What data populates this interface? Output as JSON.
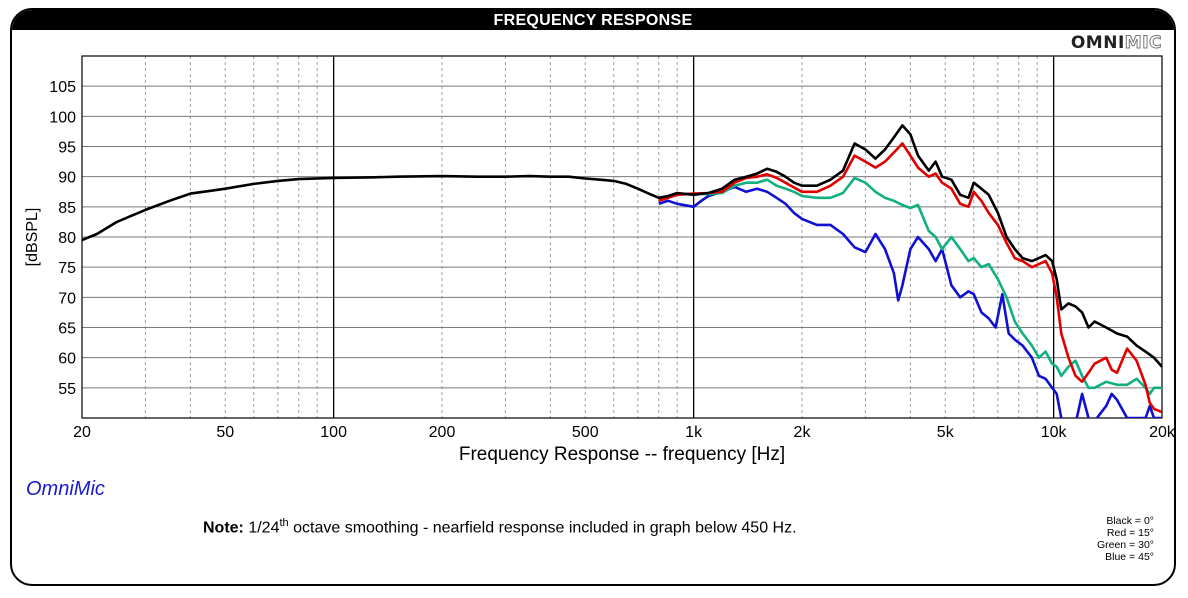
{
  "header": {
    "title": "FREQUENCY RESPONSE",
    "brand_bold": "OMNI",
    "brand_outline": "MIC"
  },
  "footer": {
    "app_label": "OmniMic",
    "note_bold": "Note:",
    "note_pre": " 1/24",
    "note_sup": "th",
    "note_post": " octave smoothing - nearfield response included in graph below 450 Hz.",
    "legend": [
      "Black = 0°",
      "Red = 15°",
      "Green = 30°",
      "Blue = 45°"
    ]
  },
  "colors": {
    "black": "#000000",
    "red": "#e00000",
    "green": "#10b080",
    "blue": "#1010d0",
    "grid": "#7a7a7a",
    "minor_grid": "#a0a0a0"
  },
  "chart_data": {
    "type": "line",
    "title": "FREQUENCY RESPONSE",
    "xlabel": "Frequency Response -- frequency [Hz]",
    "ylabel": "[dBSPL]",
    "xscale": "log",
    "xlim": [
      20,
      20000
    ],
    "ylim": [
      50,
      110
    ],
    "x_ticks": [
      20,
      50,
      100,
      200,
      500,
      1000,
      2000,
      5000,
      10000,
      20000
    ],
    "x_tick_labels": [
      "20",
      "50",
      "100",
      "200",
      "500",
      "1k",
      "2k",
      "5k",
      "10k",
      "20k"
    ],
    "y_ticks": [
      55,
      60,
      65,
      70,
      75,
      80,
      85,
      90,
      95,
      100,
      105
    ],
    "grid": true,
    "series": [
      {
        "name": "Black = 0°",
        "color": "#000000",
        "points": [
          [
            20,
            79.5
          ],
          [
            22,
            80.5
          ],
          [
            25,
            82.5
          ],
          [
            30,
            84.5
          ],
          [
            35,
            86
          ],
          [
            40,
            87.2
          ],
          [
            45,
            87.6
          ],
          [
            50,
            88
          ],
          [
            60,
            88.8
          ],
          [
            70,
            89.3
          ],
          [
            80,
            89.6
          ],
          [
            100,
            89.8
          ],
          [
            130,
            89.9
          ],
          [
            150,
            90
          ],
          [
            200,
            90.1
          ],
          [
            250,
            90
          ],
          [
            300,
            90
          ],
          [
            350,
            90.1
          ],
          [
            400,
            90
          ],
          [
            450,
            90
          ],
          [
            500,
            89.7
          ],
          [
            550,
            89.5
          ],
          [
            600,
            89.3
          ],
          [
            650,
            88.8
          ],
          [
            700,
            88
          ],
          [
            750,
            87.2
          ],
          [
            800,
            86.5
          ],
          [
            850,
            86.8
          ],
          [
            900,
            87.3
          ],
          [
            1000,
            87
          ],
          [
            1100,
            87.3
          ],
          [
            1200,
            88
          ],
          [
            1300,
            89.5
          ],
          [
            1400,
            90
          ],
          [
            1500,
            90.5
          ],
          [
            1600,
            91.3
          ],
          [
            1700,
            90.8
          ],
          [
            1800,
            90
          ],
          [
            1900,
            89
          ],
          [
            2000,
            88.5
          ],
          [
            2200,
            88.5
          ],
          [
            2400,
            89.5
          ],
          [
            2600,
            91
          ],
          [
            2800,
            95.5
          ],
          [
            3000,
            94.5
          ],
          [
            3200,
            93
          ],
          [
            3400,
            94.5
          ],
          [
            3600,
            96.5
          ],
          [
            3800,
            98.5
          ],
          [
            4000,
            97
          ],
          [
            4200,
            93.5
          ],
          [
            4500,
            91
          ],
          [
            4700,
            92.5
          ],
          [
            4900,
            90
          ],
          [
            5200,
            89.5
          ],
          [
            5500,
            87
          ],
          [
            5800,
            86.5
          ],
          [
            6000,
            89
          ],
          [
            6300,
            88
          ],
          [
            6600,
            87
          ],
          [
            7000,
            84
          ],
          [
            7400,
            80
          ],
          [
            7800,
            78
          ],
          [
            8200,
            76.5
          ],
          [
            8700,
            76
          ],
          [
            9100,
            76.5
          ],
          [
            9500,
            77
          ],
          [
            9900,
            76
          ],
          [
            10200,
            73
          ],
          [
            10500,
            68
          ],
          [
            11000,
            69
          ],
          [
            11500,
            68.5
          ],
          [
            12000,
            67.5
          ],
          [
            12500,
            65
          ],
          [
            13000,
            66
          ],
          [
            14000,
            65
          ],
          [
            15000,
            64
          ],
          [
            16000,
            63.5
          ],
          [
            17000,
            62
          ],
          [
            18000,
            61
          ],
          [
            19000,
            60
          ],
          [
            20000,
            58.5
          ]
        ]
      },
      {
        "name": "Red = 15°",
        "color": "#e00000",
        "points": [
          [
            800,
            86
          ],
          [
            850,
            86.5
          ],
          [
            900,
            87
          ],
          [
            1000,
            87.2
          ],
          [
            1100,
            87.3
          ],
          [
            1200,
            87.5
          ],
          [
            1300,
            89
          ],
          [
            1400,
            89.8
          ],
          [
            1500,
            90
          ],
          [
            1600,
            90.4
          ],
          [
            1700,
            89.8
          ],
          [
            1800,
            89
          ],
          [
            1900,
            88.2
          ],
          [
            2000,
            87.5
          ],
          [
            2200,
            87.5
          ],
          [
            2400,
            88.5
          ],
          [
            2600,
            90
          ],
          [
            2800,
            93.5
          ],
          [
            3000,
            92.5
          ],
          [
            3200,
            91.5
          ],
          [
            3400,
            92.5
          ],
          [
            3600,
            94
          ],
          [
            3800,
            95.5
          ],
          [
            4000,
            93.5
          ],
          [
            4200,
            91.5
          ],
          [
            4500,
            90
          ],
          [
            4700,
            90.5
          ],
          [
            4900,
            89
          ],
          [
            5200,
            88
          ],
          [
            5500,
            85.5
          ],
          [
            5800,
            85
          ],
          [
            6000,
            87.5
          ],
          [
            6300,
            86
          ],
          [
            6600,
            84
          ],
          [
            7000,
            82
          ],
          [
            7400,
            79
          ],
          [
            7800,
            76.5
          ],
          [
            8200,
            76
          ],
          [
            8700,
            75
          ],
          [
            9100,
            75.5
          ],
          [
            9500,
            76
          ],
          [
            9900,
            74
          ],
          [
            10200,
            70
          ],
          [
            10500,
            64
          ],
          [
            11000,
            60
          ],
          [
            11500,
            57
          ],
          [
            12000,
            56
          ],
          [
            12500,
            57.5
          ],
          [
            13000,
            59
          ],
          [
            14000,
            60
          ],
          [
            14500,
            58
          ],
          [
            15000,
            57.5
          ],
          [
            16000,
            61.5
          ],
          [
            17000,
            59.5
          ],
          [
            18000,
            55.5
          ],
          [
            18500,
            52.5
          ],
          [
            19000,
            51.5
          ],
          [
            20000,
            51
          ]
        ]
      },
      {
        "name": "Green = 30°",
        "color": "#10b080",
        "points": [
          [
            800,
            86.2
          ],
          [
            850,
            86.8
          ],
          [
            900,
            87
          ],
          [
            1000,
            87.2
          ],
          [
            1100,
            87.1
          ],
          [
            1200,
            87.3
          ],
          [
            1300,
            88.5
          ],
          [
            1400,
            89
          ],
          [
            1500,
            89
          ],
          [
            1600,
            89.5
          ],
          [
            1700,
            88.5
          ],
          [
            1800,
            88
          ],
          [
            1900,
            87.5
          ],
          [
            2000,
            86.8
          ],
          [
            2200,
            86.5
          ],
          [
            2400,
            86.5
          ],
          [
            2600,
            87.3
          ],
          [
            2800,
            89.8
          ],
          [
            3000,
            89
          ],
          [
            3200,
            87.5
          ],
          [
            3400,
            86.5
          ],
          [
            3600,
            86
          ],
          [
            3800,
            85.3
          ],
          [
            4000,
            84.8
          ],
          [
            4200,
            85.3
          ],
          [
            4500,
            81
          ],
          [
            4700,
            80
          ],
          [
            4900,
            78
          ],
          [
            5200,
            80
          ],
          [
            5500,
            78
          ],
          [
            5800,
            76
          ],
          [
            6000,
            76.5
          ],
          [
            6300,
            75
          ],
          [
            6600,
            75.5
          ],
          [
            7000,
            73
          ],
          [
            7400,
            70
          ],
          [
            7800,
            66
          ],
          [
            8200,
            64
          ],
          [
            8700,
            62
          ],
          [
            9100,
            60
          ],
          [
            9500,
            61
          ],
          [
            9900,
            59
          ],
          [
            10200,
            58.5
          ],
          [
            10500,
            57
          ],
          [
            11000,
            58.5
          ],
          [
            11500,
            59.5
          ],
          [
            12000,
            57
          ],
          [
            12500,
            55
          ],
          [
            13000,
            55
          ],
          [
            14000,
            56
          ],
          [
            15000,
            55.5
          ],
          [
            16000,
            55.5
          ],
          [
            17000,
            56.5
          ],
          [
            18000,
            55
          ],
          [
            18500,
            54
          ],
          [
            19000,
            55
          ],
          [
            20000,
            55
          ]
        ]
      },
      {
        "name": "Blue = 45°",
        "color": "#1010d0",
        "points": [
          [
            800,
            85.5
          ],
          [
            850,
            86
          ],
          [
            900,
            85.5
          ],
          [
            1000,
            85
          ],
          [
            1050,
            86
          ],
          [
            1100,
            86.8
          ],
          [
            1200,
            87.5
          ],
          [
            1300,
            88.3
          ],
          [
            1400,
            87.5
          ],
          [
            1500,
            88
          ],
          [
            1600,
            87.5
          ],
          [
            1700,
            86.5
          ],
          [
            1800,
            85.5
          ],
          [
            1900,
            84
          ],
          [
            2000,
            83
          ],
          [
            2200,
            82
          ],
          [
            2400,
            82
          ],
          [
            2600,
            80.5
          ],
          [
            2800,
            78.3
          ],
          [
            3000,
            77.5
          ],
          [
            3200,
            80.5
          ],
          [
            3400,
            78
          ],
          [
            3600,
            74
          ],
          [
            3700,
            69.5
          ],
          [
            3800,
            72
          ],
          [
            4000,
            78
          ],
          [
            4200,
            80
          ],
          [
            4500,
            78
          ],
          [
            4700,
            76
          ],
          [
            4900,
            78
          ],
          [
            5200,
            72
          ],
          [
            5500,
            70
          ],
          [
            5800,
            71
          ],
          [
            6000,
            70.5
          ],
          [
            6300,
            67.5
          ],
          [
            6600,
            66.5
          ],
          [
            6900,
            65
          ],
          [
            7200,
            70.5
          ],
          [
            7500,
            64
          ],
          [
            7800,
            63
          ],
          [
            8200,
            62
          ],
          [
            8700,
            60
          ],
          [
            9100,
            57
          ],
          [
            9500,
            56.5
          ],
          [
            9900,
            55
          ],
          [
            10200,
            54
          ],
          [
            10500,
            50
          ],
          [
            11000,
            49
          ],
          [
            11500,
            49
          ],
          [
            12000,
            54
          ],
          [
            12500,
            50
          ],
          [
            13000,
            49.5
          ],
          [
            14000,
            52
          ],
          [
            14500,
            54
          ],
          [
            15000,
            53
          ],
          [
            16000,
            50
          ],
          [
            17000,
            50
          ],
          [
            18000,
            50
          ],
          [
            18500,
            52
          ],
          [
            19000,
            50
          ],
          [
            20000,
            50
          ]
        ]
      }
    ]
  }
}
